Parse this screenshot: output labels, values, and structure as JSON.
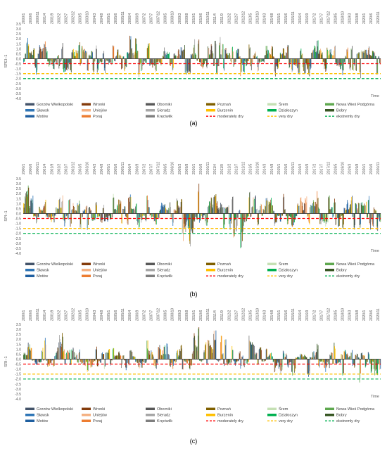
{
  "figure": {
    "panel_labels": [
      "(a)",
      "(b)",
      "(c)"
    ]
  },
  "legend": {
    "items": [
      {
        "label": "Gorzów Wielkopolski",
        "color": "#44546a",
        "kind": "box"
      },
      {
        "label": "Wronki",
        "color": "#843c0c",
        "kind": "box"
      },
      {
        "label": "Oborniki",
        "color": "#595959",
        "kind": "box"
      },
      {
        "label": "Poznań",
        "color": "#806000",
        "kind": "box"
      },
      {
        "label": "Śrem",
        "color": "#c5e0b4",
        "kind": "box"
      },
      {
        "label": "Nowa Wieś Podgórna",
        "color": "#5fa84f",
        "kind": "box"
      },
      {
        "label": "Sławsk",
        "color": "#2e75b6",
        "kind": "box"
      },
      {
        "label": "Uniejów",
        "color": "#f4b183",
        "kind": "box"
      },
      {
        "label": "Sieradz",
        "color": "#a6a6a6",
        "kind": "box"
      },
      {
        "label": "Burzenin",
        "color": "#ffc000",
        "kind": "box"
      },
      {
        "label": "Działoszyn",
        "color": "#00b050",
        "kind": "box"
      },
      {
        "label": "Bobry",
        "color": "#375623",
        "kind": "box"
      },
      {
        "label": "Mstów",
        "color": "#1f5fa0",
        "kind": "box"
      },
      {
        "label": "Poraj",
        "color": "#ed7d31",
        "kind": "box"
      },
      {
        "label": "Kręciwilk",
        "color": "#7f7f7f",
        "kind": "box"
      },
      {
        "label": "moderately dry",
        "color": "#ff0000",
        "kind": "dash"
      },
      {
        "label": "very dry",
        "color": "#ffc000",
        "kind": "dash"
      },
      {
        "label": "ekstremly dry",
        "color": "#00b050",
        "kind": "dash"
      }
    ]
  },
  "chart_data": [
    {
      "type": "bar",
      "panel": "(a)",
      "ylabel": "SPEI−1",
      "xlabel": "Time",
      "ylim": [
        -4.0,
        3.5
      ],
      "yticks": [
        "3.5",
        "3.0",
        "2.5",
        "2.0",
        "1.5",
        "1.0",
        "0.5",
        "0.0",
        "-0.5",
        "-1.0",
        "-1.5",
        "-2.0",
        "-2.5",
        "-3.0",
        "-3.5",
        "-4.0"
      ],
      "x_tick_labels": [
        "2000/1",
        "2000/6",
        "2000/11",
        "2001/4",
        "2001/9",
        "2002/2",
        "2002/7",
        "2002/12",
        "2003/5",
        "2003/10",
        "2004/3",
        "2004/8",
        "2005/1",
        "2005/6",
        "2005/11",
        "2006/4",
        "2006/9",
        "2007/2",
        "2007/7",
        "2007/12",
        "2008/5",
        "2008/10",
        "2009/3",
        "2009/8",
        "2010/1",
        "2010/6",
        "2010/11",
        "2011/4",
        "2011/9",
        "2012/2",
        "2012/7",
        "2012/12",
        "2013/5",
        "2013/10",
        "2014/3",
        "2014/8",
        "2015/1",
        "2015/6",
        "2015/11",
        "2016/4",
        "2016/9",
        "2017/2",
        "2017/7",
        "2017/12",
        "2018/5",
        "2018/10",
        "2019/3",
        "2019/8",
        "2020/1",
        "2020/6",
        "2020/11"
      ],
      "thresholds": [
        {
          "name": "moderately dry",
          "value": -0.5,
          "color": "#ff0000"
        },
        {
          "name": "very dry",
          "value": -1.5,
          "color": "#ffc000"
        },
        {
          "name": "ekstremly dry",
          "value": -2.0,
          "color": "#00b050"
        }
      ],
      "months": 252,
      "sampled_values": {
        "x": [
          "2000/1",
          "2001/1",
          "2002/1",
          "2003/1",
          "2004/1",
          "2005/1",
          "2006/1",
          "2007/1",
          "2008/1",
          "2009/1",
          "2010/1",
          "2011/1",
          "2012/1",
          "2013/1",
          "2014/1",
          "2015/1",
          "2016/1",
          "2017/1",
          "2018/1",
          "2019/1",
          "2020/1"
        ],
        "peak": [
          2.3,
          1.9,
          1.6,
          1.7,
          1.5,
          1.4,
          2.5,
          1.9,
          1.3,
          1.5,
          2.0,
          2.3,
          1.2,
          1.5,
          1.4,
          1.6,
          1.2,
          2.2,
          1.4,
          1.5,
          1.3
        ],
        "trough": [
          -1.6,
          -1.4,
          -1.4,
          -1.6,
          -1.5,
          -1.6,
          -2.2,
          -1.4,
          -1.4,
          -2.0,
          -1.1,
          -1.6,
          -1.9,
          -1.3,
          -1.8,
          -1.6,
          -1.9,
          -1.5,
          -1.9,
          -2.0,
          -1.9
        ]
      }
    },
    {
      "type": "bar",
      "panel": "(b)",
      "ylabel": "SPI−1",
      "xlabel": "Time",
      "ylim": [
        -4.0,
        3.5
      ],
      "yticks": [
        "3.5",
        "3.0",
        "2.5",
        "2.0",
        "1.5",
        "1.0",
        "0.5",
        "0.0",
        "-0.5",
        "-1.0",
        "-1.5",
        "-2.0",
        "-2.5",
        "-3.0",
        "-3.5",
        "-4.0"
      ],
      "x_tick_labels": [
        "2000/1",
        "2000/6",
        "2000/11",
        "2001/4",
        "2001/9",
        "2002/2",
        "2002/7",
        "2002/12",
        "2003/5",
        "2003/10",
        "2004/3",
        "2004/8",
        "2005/1",
        "2005/6",
        "2005/11",
        "2006/4",
        "2006/9",
        "2007/2",
        "2007/7",
        "2007/12",
        "2008/5",
        "2008/10",
        "2009/3",
        "2009/8",
        "2010/1",
        "2010/6",
        "2010/11",
        "2011/4",
        "2011/9",
        "2012/2",
        "2012/7",
        "2012/12",
        "2013/5",
        "2013/10",
        "2014/3",
        "2014/8",
        "2015/1",
        "2015/6",
        "2015/11",
        "2016/4",
        "2016/9",
        "2017/2",
        "2017/7",
        "2017/12",
        "2018/5",
        "2018/10",
        "2019/3",
        "2019/8",
        "2020/1",
        "2020/6",
        "2020/11"
      ],
      "thresholds": [
        {
          "name": "moderately dry",
          "value": -0.5,
          "color": "#ff0000"
        },
        {
          "name": "very dry",
          "value": -1.5,
          "color": "#ffc000"
        },
        {
          "name": "ekstremly dry",
          "value": -2.0,
          "color": "#00b050"
        }
      ],
      "months": 252,
      "sampled_values": {
        "x": [
          "2000/1",
          "2001/1",
          "2002/1",
          "2003/1",
          "2004/1",
          "2005/1",
          "2006/1",
          "2007/1",
          "2008/1",
          "2009/1",
          "2010/1",
          "2011/1",
          "2012/1",
          "2013/1",
          "2014/1",
          "2015/1",
          "2016/1",
          "2017/1",
          "2018/1",
          "2019/1",
          "2020/1"
        ],
        "peak": [
          3.0,
          1.6,
          2.0,
          1.3,
          1.5,
          2.0,
          2.0,
          2.3,
          1.4,
          2.0,
          3.1,
          2.5,
          2.0,
          2.3,
          1.7,
          2.0,
          1.8,
          2.6,
          1.5,
          2.0,
          1.8
        ],
        "trough": [
          -1.1,
          -1.2,
          -1.5,
          -1.9,
          -1.3,
          -1.6,
          -1.5,
          -1.2,
          -1.4,
          -3.8,
          -1.3,
          -1.7,
          -3.7,
          -1.4,
          -1.5,
          -1.7,
          -1.3,
          -1.4,
          -1.6,
          -1.9,
          -2.0
        ]
      }
    },
    {
      "type": "bar",
      "panel": "(c)",
      "ylabel": "SRI−1",
      "xlabel": "Time",
      "ylim": [
        -4.0,
        3.5
      ],
      "yticks": [
        "3.5",
        "3.0",
        "2.5",
        "2.0",
        "1.5",
        "1.0",
        "0.5",
        "0.0",
        "-0.5",
        "-1.0",
        "-1.5",
        "-2.0",
        "-2.5",
        "-3.0",
        "-3.5",
        "-4.0"
      ],
      "x_tick_labels": [
        "2000/1",
        "2000/6",
        "2000/11",
        "2001/4",
        "2001/9",
        "2002/2",
        "2002/7",
        "2002/12",
        "2003/5",
        "2003/10",
        "2004/3",
        "2004/8",
        "2005/1",
        "2005/6",
        "2005/11",
        "2006/4",
        "2006/9",
        "2007/2",
        "2007/7",
        "2007/12",
        "2008/5",
        "2008/10",
        "2009/3",
        "2009/8",
        "2010/1",
        "2010/6",
        "2010/11",
        "2011/4",
        "2011/9",
        "2012/2",
        "2012/7",
        "2012/12",
        "2013/5",
        "2013/10",
        "2014/3",
        "2014/8",
        "2015/1",
        "2015/6",
        "2015/11",
        "2016/4",
        "2016/9",
        "2017/2",
        "2017/7",
        "2017/12",
        "2018/5",
        "2018/10",
        "2019/3",
        "2019/8",
        "2020/1",
        "2020/6",
        "2020/11"
      ],
      "thresholds": [
        {
          "name": "moderately dry",
          "value": -0.5,
          "color": "#ff0000"
        },
        {
          "name": "very dry",
          "value": -1.5,
          "color": "#ffc000"
        },
        {
          "name": "ekstremly dry",
          "value": -2.0,
          "color": "#00b050"
        }
      ],
      "months": 252,
      "sampled_values": {
        "x": [
          "2000/1",
          "2001/1",
          "2002/1",
          "2003/1",
          "2004/1",
          "2005/1",
          "2006/1",
          "2007/1",
          "2008/1",
          "2009/1",
          "2010/1",
          "2011/1",
          "2012/1",
          "2013/1",
          "2014/1",
          "2015/1",
          "2016/1",
          "2017/1",
          "2018/1",
          "2019/1",
          "2020/1"
        ],
        "peak": [
          1.9,
          2.2,
          2.7,
          1.0,
          1.4,
          1.6,
          1.2,
          1.9,
          1.8,
          1.6,
          3.3,
          3.2,
          1.4,
          2.6,
          1.1,
          0.9,
          0.6,
          1.7,
          1.9,
          1.0,
          0.9
        ],
        "trough": [
          -0.7,
          -0.9,
          -0.6,
          -1.3,
          -1.2,
          -0.9,
          -1.3,
          -1.0,
          -1.0,
          -1.1,
          -0.6,
          -0.7,
          -1.0,
          -0.8,
          -1.4,
          -1.9,
          -2.1,
          -1.3,
          -1.8,
          -2.4,
          -1.7
        ]
      }
    }
  ]
}
